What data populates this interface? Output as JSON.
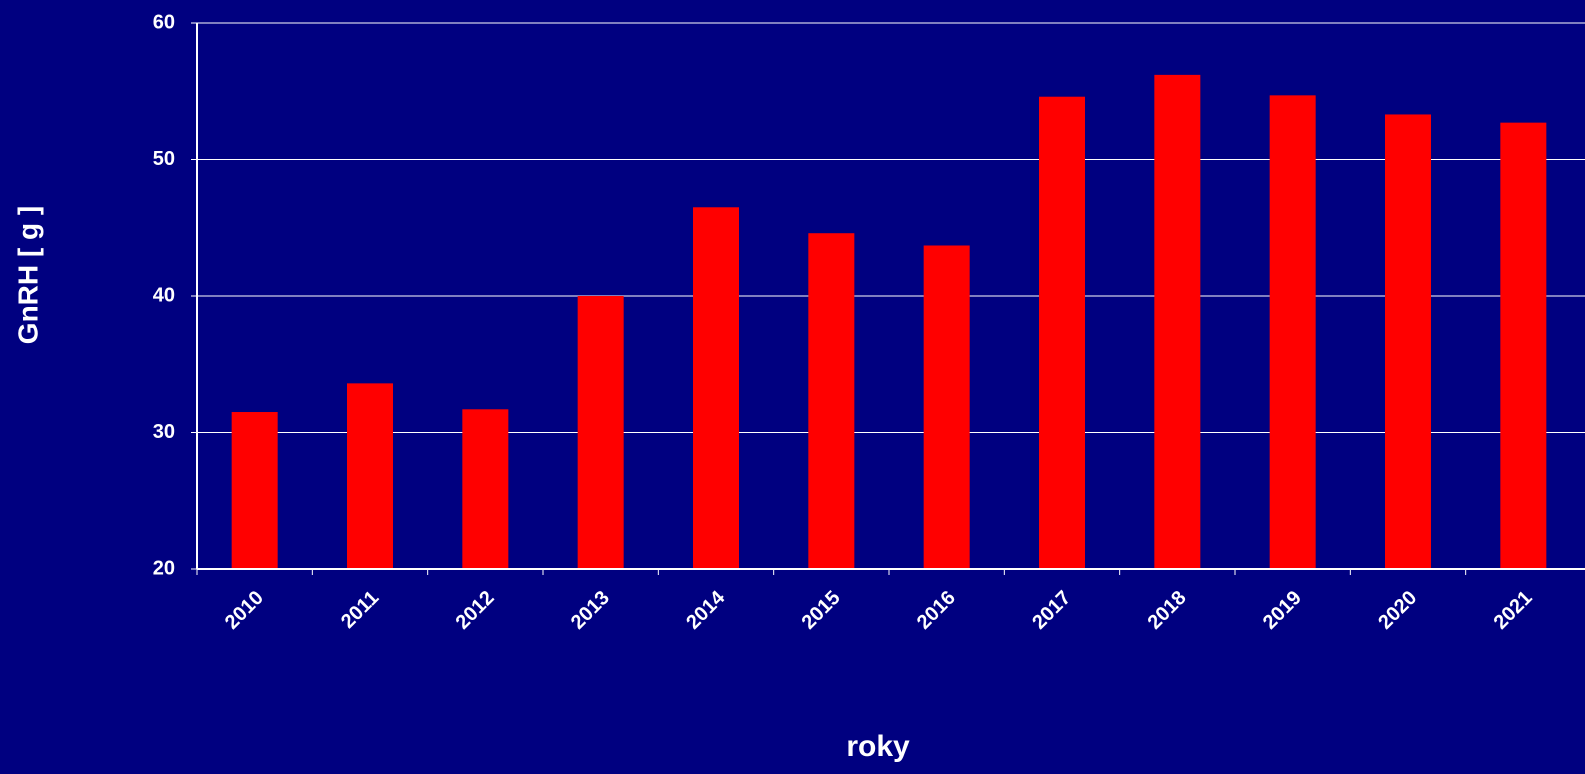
{
  "chart_data": {
    "type": "bar",
    "x_label": "roky",
    "y_label": "GnRH [ g ]",
    "categories": [
      "2010",
      "2011",
      "2012",
      "2013",
      "2014",
      "2015",
      "2016",
      "2017",
      "2018",
      "2019",
      "2020",
      "2021"
    ],
    "values": [
      31.5,
      33.6,
      31.7,
      40.0,
      46.5,
      44.6,
      43.7,
      54.6,
      56.2,
      54.7,
      53.3,
      52.7
    ],
    "color": "#ff0000",
    "ylim": [
      20,
      60
    ],
    "yticks": [
      20,
      30,
      40,
      50,
      60
    ],
    "grid": true
  }
}
